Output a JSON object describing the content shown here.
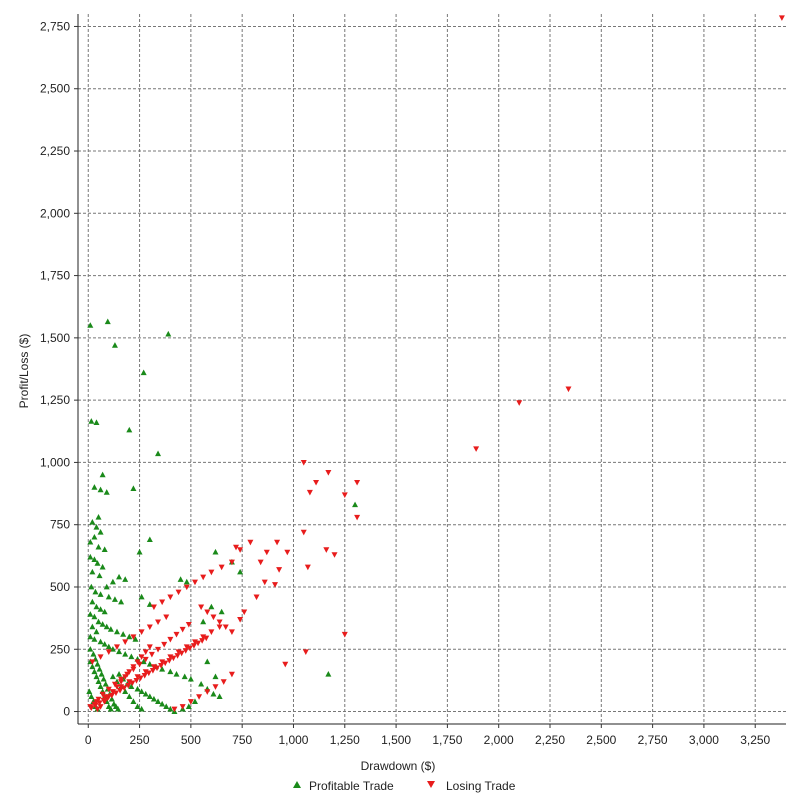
{
  "chart_data": {
    "type": "scatter",
    "title": "",
    "xlabel": "Drawdown ($)",
    "ylabel": "Profit/Loss ($)",
    "xlim": [
      -50,
      3400
    ],
    "ylim": [
      -50,
      2800
    ],
    "grid": true,
    "legend_position": "bottom",
    "x_ticks": [
      0,
      250,
      500,
      750,
      1000,
      1250,
      1500,
      1750,
      2000,
      2250,
      2500,
      2750,
      3000,
      3250
    ],
    "x_tick_labels": [
      "0",
      "250",
      "500",
      "750",
      "1,000",
      "1,250",
      "1,500",
      "1,750",
      "2,000",
      "2,250",
      "2,500",
      "2,750",
      "3,000",
      "3,250"
    ],
    "y_ticks": [
      0,
      250,
      500,
      750,
      1000,
      1250,
      1500,
      1750,
      2000,
      2250,
      2500,
      2750
    ],
    "y_tick_labels": [
      "0",
      "250",
      "500",
      "750",
      "1,000",
      "1,250",
      "1,500",
      "1,750",
      "2,000",
      "2,250",
      "2,500",
      "2,750"
    ],
    "series": [
      {
        "name": "Profitable Trade",
        "color": "#1a8a1a",
        "marker": "triangle-up",
        "points": [
          [
            10,
            1550
          ],
          [
            95,
            1565
          ],
          [
            130,
            1470
          ],
          [
            390,
            1515
          ],
          [
            270,
            1360
          ],
          [
            15,
            1165
          ],
          [
            40,
            1160
          ],
          [
            200,
            1130
          ],
          [
            340,
            1035
          ],
          [
            30,
            900
          ],
          [
            60,
            890
          ],
          [
            90,
            880
          ],
          [
            220,
            895
          ],
          [
            70,
            950
          ],
          [
            1300,
            830
          ],
          [
            50,
            780
          ],
          [
            20,
            760
          ],
          [
            40,
            740
          ],
          [
            60,
            720
          ],
          [
            30,
            700
          ],
          [
            10,
            680
          ],
          [
            50,
            660
          ],
          [
            80,
            650
          ],
          [
            300,
            690
          ],
          [
            250,
            640
          ],
          [
            10,
            620
          ],
          [
            30,
            610
          ],
          [
            45,
            595
          ],
          [
            70,
            580
          ],
          [
            150,
            540
          ],
          [
            180,
            530
          ],
          [
            120,
            520
          ],
          [
            20,
            560
          ],
          [
            55,
            545
          ],
          [
            90,
            500
          ],
          [
            15,
            500
          ],
          [
            35,
            480
          ],
          [
            60,
            470
          ],
          [
            100,
            460
          ],
          [
            130,
            450
          ],
          [
            160,
            440
          ],
          [
            260,
            460
          ],
          [
            300,
            430
          ],
          [
            450,
            530
          ],
          [
            480,
            520
          ],
          [
            620,
            640
          ],
          [
            700,
            600
          ],
          [
            740,
            560
          ],
          [
            600,
            420
          ],
          [
            650,
            400
          ],
          [
            560,
            360
          ],
          [
            20,
            440
          ],
          [
            40,
            420
          ],
          [
            60,
            410
          ],
          [
            80,
            400
          ],
          [
            10,
            390
          ],
          [
            30,
            380
          ],
          [
            50,
            360
          ],
          [
            70,
            350
          ],
          [
            90,
            340
          ],
          [
            110,
            330
          ],
          [
            140,
            320
          ],
          [
            170,
            310
          ],
          [
            200,
            300
          ],
          [
            230,
            290
          ],
          [
            20,
            340
          ],
          [
            40,
            320
          ],
          [
            10,
            300
          ],
          [
            30,
            290
          ],
          [
            60,
            280
          ],
          [
            80,
            270
          ],
          [
            100,
            260
          ],
          [
            120,
            250
          ],
          [
            150,
            240
          ],
          [
            180,
            230
          ],
          [
            210,
            220
          ],
          [
            240,
            210
          ],
          [
            270,
            200
          ],
          [
            300,
            190
          ],
          [
            330,
            180
          ],
          [
            360,
            170
          ],
          [
            400,
            160
          ],
          [
            430,
            150
          ],
          [
            470,
            140
          ],
          [
            500,
            130
          ],
          [
            550,
            110
          ],
          [
            580,
            90
          ],
          [
            610,
            70
          ],
          [
            640,
            60
          ],
          [
            520,
            40
          ],
          [
            490,
            20
          ],
          [
            460,
            10
          ],
          [
            150,
            150
          ],
          [
            170,
            130
          ],
          [
            190,
            110
          ],
          [
            210,
            100
          ],
          [
            240,
            90
          ],
          [
            260,
            80
          ],
          [
            280,
            70
          ],
          [
            300,
            60
          ],
          [
            320,
            50
          ],
          [
            340,
            40
          ],
          [
            360,
            30
          ],
          [
            380,
            20
          ],
          [
            400,
            10
          ],
          [
            420,
            0
          ],
          [
            10,
            200
          ],
          [
            20,
            180
          ],
          [
            30,
            160
          ],
          [
            40,
            140
          ],
          [
            50,
            120
          ],
          [
            60,
            100
          ],
          [
            70,
            80
          ],
          [
            80,
            60
          ],
          [
            90,
            40
          ],
          [
            100,
            20
          ],
          [
            110,
            10
          ],
          [
            5,
            80
          ],
          [
            15,
            60
          ],
          [
            25,
            40
          ],
          [
            35,
            20
          ],
          [
            45,
            10
          ],
          [
            120,
            140
          ],
          [
            140,
            120
          ],
          [
            160,
            100
          ],
          [
            180,
            80
          ],
          [
            200,
            60
          ],
          [
            220,
            40
          ],
          [
            240,
            20
          ],
          [
            260,
            10
          ],
          [
            1170,
            150
          ],
          [
            580,
            200
          ],
          [
            620,
            140
          ],
          [
            10,
            250
          ],
          [
            25,
            230
          ],
          [
            35,
            210
          ],
          [
            45,
            190
          ],
          [
            55,
            170
          ],
          [
            65,
            150
          ],
          [
            75,
            130
          ],
          [
            85,
            110
          ],
          [
            95,
            90
          ],
          [
            105,
            70
          ],
          [
            115,
            50
          ],
          [
            125,
            30
          ],
          [
            135,
            20
          ],
          [
            145,
            10
          ]
        ]
      },
      {
        "name": "Losing Trade",
        "color": "#e81c1c",
        "marker": "triangle-down",
        "points": [
          [
            3380,
            2785
          ],
          [
            2340,
            1295
          ],
          [
            2100,
            1240
          ],
          [
            1890,
            1055
          ],
          [
            1050,
            1000
          ],
          [
            1170,
            960
          ],
          [
            1310,
            920
          ],
          [
            1110,
            920
          ],
          [
            1080,
            880
          ],
          [
            1250,
            870
          ],
          [
            1050,
            720
          ],
          [
            1160,
            650
          ],
          [
            1200,
            630
          ],
          [
            1310,
            780
          ],
          [
            920,
            680
          ],
          [
            970,
            640
          ],
          [
            1070,
            580
          ],
          [
            790,
            680
          ],
          [
            720,
            660
          ],
          [
            740,
            650
          ],
          [
            870,
            640
          ],
          [
            840,
            600
          ],
          [
            930,
            570
          ],
          [
            860,
            520
          ],
          [
            910,
            510
          ],
          [
            820,
            460
          ],
          [
            700,
            600
          ],
          [
            650,
            580
          ],
          [
            600,
            560
          ],
          [
            560,
            540
          ],
          [
            520,
            520
          ],
          [
            480,
            500
          ],
          [
            440,
            480
          ],
          [
            400,
            460
          ],
          [
            360,
            440
          ],
          [
            320,
            420
          ],
          [
            760,
            400
          ],
          [
            740,
            370
          ],
          [
            640,
            340
          ],
          [
            600,
            320
          ],
          [
            560,
            300
          ],
          [
            520,
            280
          ],
          [
            480,
            260
          ],
          [
            440,
            240
          ],
          [
            400,
            220
          ],
          [
            360,
            200
          ],
          [
            320,
            180
          ],
          [
            280,
            160
          ],
          [
            240,
            140
          ],
          [
            200,
            120
          ],
          [
            160,
            100
          ],
          [
            120,
            80
          ],
          [
            80,
            60
          ],
          [
            40,
            40
          ],
          [
            10,
            20
          ],
          [
            1250,
            310
          ],
          [
            1060,
            240
          ],
          [
            960,
            190
          ],
          [
            700,
            150
          ],
          [
            660,
            120
          ],
          [
            620,
            100
          ],
          [
            580,
            80
          ],
          [
            540,
            60
          ],
          [
            500,
            40
          ],
          [
            460,
            20
          ],
          [
            420,
            10
          ],
          [
            380,
            380
          ],
          [
            340,
            360
          ],
          [
            300,
            340
          ],
          [
            260,
            320
          ],
          [
            220,
            300
          ],
          [
            180,
            280
          ],
          [
            140,
            260
          ],
          [
            100,
            240
          ],
          [
            60,
            220
          ],
          [
            20,
            200
          ],
          [
            300,
            260
          ],
          [
            280,
            240
          ],
          [
            260,
            220
          ],
          [
            240,
            200
          ],
          [
            220,
            180
          ],
          [
            200,
            160
          ],
          [
            180,
            140
          ],
          [
            160,
            120
          ],
          [
            140,
            100
          ],
          [
            120,
            80
          ],
          [
            100,
            60
          ],
          [
            80,
            40
          ],
          [
            60,
            20
          ],
          [
            45,
            10
          ],
          [
            550,
            420
          ],
          [
            580,
            400
          ],
          [
            610,
            380
          ],
          [
            640,
            360
          ],
          [
            670,
            340
          ],
          [
            700,
            320
          ],
          [
            490,
            350
          ],
          [
            460,
            330
          ],
          [
            430,
            310
          ],
          [
            400,
            290
          ],
          [
            370,
            270
          ],
          [
            340,
            250
          ],
          [
            310,
            230
          ],
          [
            280,
            210
          ],
          [
            250,
            190
          ],
          [
            220,
            170
          ],
          [
            190,
            150
          ],
          [
            160,
            130
          ],
          [
            130,
            110
          ],
          [
            100,
            90
          ],
          [
            70,
            70
          ],
          [
            50,
            50
          ],
          [
            30,
            30
          ],
          [
            15,
            15
          ],
          [
            35,
            25
          ],
          [
            55,
            35
          ],
          [
            75,
            45
          ],
          [
            95,
            55
          ],
          [
            115,
            65
          ],
          [
            135,
            75
          ],
          [
            155,
            85
          ],
          [
            175,
            95
          ],
          [
            195,
            105
          ],
          [
            215,
            115
          ],
          [
            235,
            125
          ],
          [
            255,
            135
          ],
          [
            275,
            145
          ],
          [
            295,
            155
          ],
          [
            315,
            165
          ],
          [
            335,
            175
          ],
          [
            355,
            185
          ],
          [
            375,
            195
          ],
          [
            395,
            205
          ],
          [
            415,
            215
          ],
          [
            435,
            225
          ],
          [
            455,
            235
          ],
          [
            475,
            245
          ],
          [
            495,
            255
          ],
          [
            515,
            265
          ],
          [
            535,
            275
          ],
          [
            555,
            285
          ],
          [
            575,
            295
          ]
        ]
      }
    ]
  }
}
